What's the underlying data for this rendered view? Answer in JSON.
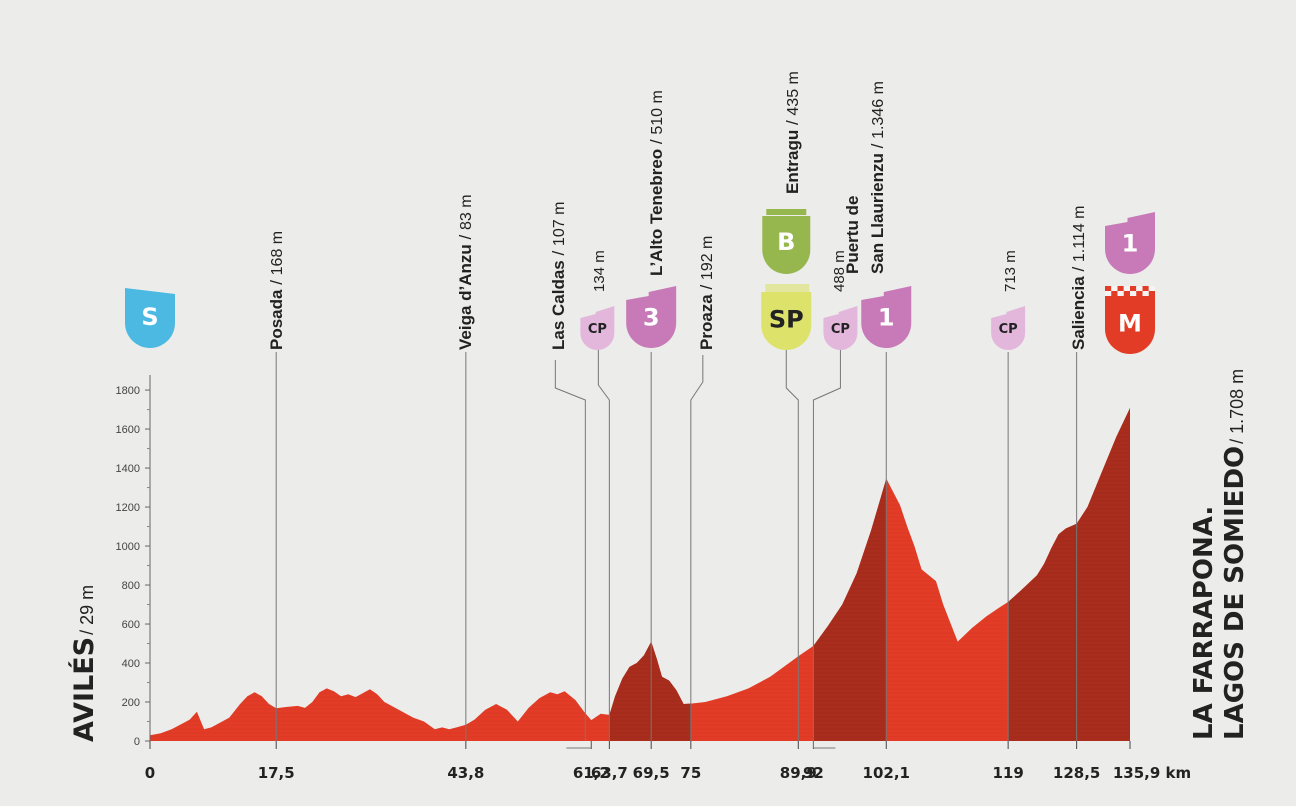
{
  "colors": {
    "background": "#ececeb",
    "profile_light": "#e33c26",
    "profile_dark": "#a82d1c",
    "start_badge": "#4cb9e2",
    "cat_climb": "#c77ab7",
    "checkpoint": "#e3b7dc",
    "bonus": "#96b74e",
    "sprint": "#dde26a",
    "finish_badge": "#e23c26",
    "text": "#222222",
    "axis": "#555555"
  },
  "start_label": {
    "name": "AVILÉS",
    "elevation": "29 m"
  },
  "finish_label": {
    "line1": "LA FARRAPONA.",
    "line2": "LAGOS DE SOMIEDO",
    "elevation": "1.708 m"
  },
  "chart_data": {
    "type": "area",
    "title": "",
    "xlabel": "km",
    "ylabel": "",
    "xlim": [
      0,
      135.9
    ],
    "ylim": [
      0,
      1900
    ],
    "y_ticks": [
      0,
      200,
      400,
      600,
      800,
      1000,
      1200,
      1400,
      1600,
      1800
    ],
    "x_ticks": [
      {
        "km": 0,
        "label": "0"
      },
      {
        "km": 17.5,
        "label": "17,5"
      },
      {
        "km": 43.8,
        "label": "43,8"
      },
      {
        "km": 61.2,
        "label": "61,2"
      },
      {
        "km": 63.7,
        "label": "63,7"
      },
      {
        "km": 69.5,
        "label": "69,5"
      },
      {
        "km": 75,
        "label": "75"
      },
      {
        "km": 89.9,
        "label": "89,9"
      },
      {
        "km": 92,
        "label": "92"
      },
      {
        "km": 102.1,
        "label": "102,1"
      },
      {
        "km": 119,
        "label": "119"
      },
      {
        "km": 128.5,
        "label": "128,5"
      },
      {
        "km": 135.9,
        "label": "135,9 km"
      }
    ],
    "dark_segments": [
      [
        63.7,
        75
      ],
      [
        92,
        102.1
      ],
      [
        119,
        135.9
      ]
    ],
    "profile": {
      "x": [
        0,
        1.5,
        3,
        4.5,
        5.5,
        6.5,
        7.5,
        8.5,
        9.5,
        11,
        12.5,
        13.5,
        14.5,
        15.5,
        16.5,
        17.5,
        19,
        20.5,
        21.5,
        22.5,
        23.5,
        24.5,
        25.5,
        26.5,
        27.5,
        28.5,
        29.5,
        30.5,
        31.5,
        32.5,
        33.5,
        35,
        36.5,
        38,
        39.5,
        40.5,
        41.5,
        42.5,
        43.8,
        45,
        46.5,
        48,
        49.5,
        51,
        52.5,
        54,
        55.5,
        56.5,
        57.5,
        59,
        60.2,
        61.2,
        62.5,
        63.7,
        64.5,
        65.5,
        66.5,
        67.5,
        68.5,
        69.5,
        70.3,
        71,
        72,
        73,
        74,
        75,
        77,
        80,
        83,
        86,
        89.9,
        92,
        94,
        96,
        98,
        100,
        102.1,
        104,
        105,
        106,
        107,
        109,
        110,
        112,
        114,
        116,
        118,
        119,
        121,
        123,
        124,
        125,
        126,
        127,
        128.5,
        130,
        132,
        134,
        135.9
      ],
      "y": [
        29,
        40,
        60,
        90,
        110,
        150,
        60,
        70,
        90,
        120,
        190,
        230,
        250,
        230,
        190,
        168,
        175,
        180,
        170,
        200,
        250,
        270,
        255,
        230,
        240,
        225,
        245,
        265,
        240,
        200,
        180,
        150,
        120,
        100,
        60,
        70,
        60,
        70,
        83,
        110,
        160,
        190,
        160,
        100,
        170,
        220,
        250,
        240,
        255,
        210,
        150,
        107,
        140,
        134,
        230,
        320,
        380,
        400,
        440,
        510,
        420,
        330,
        310,
        260,
        190,
        192,
        200,
        230,
        270,
        330,
        435,
        488,
        590,
        700,
        860,
        1080,
        1346,
        1210,
        1100,
        1000,
        880,
        820,
        700,
        510,
        580,
        640,
        690,
        713,
        780,
        850,
        910,
        990,
        1060,
        1090,
        1114,
        1200,
        1380,
        1560,
        1708
      ]
    }
  },
  "waypoints": [
    {
      "km": 0,
      "name": "",
      "elev": "",
      "badge": "S",
      "badge_type": "start"
    },
    {
      "km": 17.5,
      "name": "Posada",
      "elev": "168 m"
    },
    {
      "km": 43.8,
      "name": "Veiga d’Anzu",
      "elev": "83 m"
    },
    {
      "km": 61.2,
      "name": "Las Caldas",
      "elev": "107 m",
      "top": true
    },
    {
      "km": 63.7,
      "name": "",
      "elev": "134 m",
      "badge": "CP",
      "badge_type": "checkpoint"
    },
    {
      "km": 69.5,
      "name": "L’Alto Tenebreo",
      "elev": "510 m",
      "badge": "3",
      "badge_type": "climb"
    },
    {
      "km": 75,
      "name": "Proaza",
      "elev": "192 m"
    },
    {
      "km": 89.9,
      "name": "Entragu",
      "elev": "435 m",
      "badge": "SP",
      "badge_type": "sprint",
      "badge2": "B",
      "badge2_type": "bonus"
    },
    {
      "km": 92,
      "name": "",
      "elev": "488 m",
      "badge": "CP",
      "badge_type": "checkpoint"
    },
    {
      "km": 102.1,
      "name_line1": "Puertu de",
      "name": "San Llaurienzu",
      "elev": "1.346 m",
      "badge": "1",
      "badge_type": "climb"
    },
    {
      "km": 119,
      "name": "",
      "elev": "713 m",
      "badge": "CP",
      "badge_type": "checkpoint"
    },
    {
      "km": 128.5,
      "name": "Saliencia",
      "elev": "1.114 m"
    },
    {
      "km": 135.9,
      "name": "",
      "elev": "",
      "badge": "M",
      "badge_type": "finish",
      "badge2": "1",
      "badge2_type": "climb"
    }
  ]
}
